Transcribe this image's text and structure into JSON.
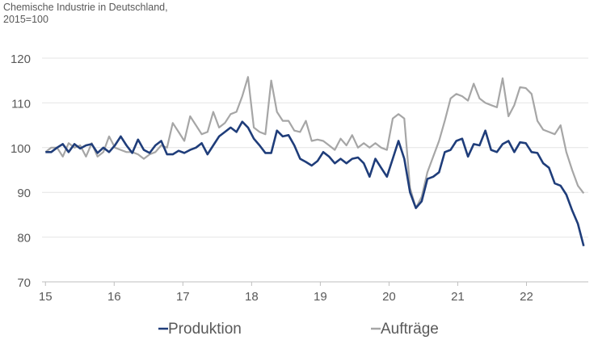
{
  "chart_data": {
    "type": "line",
    "title": "Chemische Industrie in Deutschland,",
    "subtitle": "2015=100",
    "xlabel": "",
    "ylabel": "",
    "x_start": 2015,
    "x_end": 2022.833,
    "xlim": [
      2014.95,
      2022.9
    ],
    "ylim": [
      70,
      120
    ],
    "y_ticks": [
      70,
      80,
      90,
      100,
      110,
      120
    ],
    "x_ticks": [
      {
        "value": 2015,
        "label": "15"
      },
      {
        "value": 2016,
        "label": "16"
      },
      {
        "value": 2017,
        "label": "17"
      },
      {
        "value": 2018,
        "label": "18"
      },
      {
        "value": 2019,
        "label": "19"
      },
      {
        "value": 2020,
        "label": "20"
      },
      {
        "value": 2021,
        "label": "21"
      },
      {
        "value": 2022,
        "label": "22"
      }
    ],
    "grid": true,
    "legend_position": "bottom",
    "series": [
      {
        "name": "Produktion",
        "color": "#1f3d7a",
        "values": [
          99.0,
          99.0,
          100.0,
          100.8,
          99.0,
          100.8,
          99.8,
          100.5,
          100.8,
          98.8,
          100.0,
          99.0,
          100.5,
          102.5,
          100.5,
          98.8,
          101.8,
          99.5,
          98.8,
          100.5,
          101.5,
          98.5,
          98.5,
          99.3,
          98.8,
          99.5,
          100.0,
          101.0,
          98.5,
          100.5,
          102.5,
          103.5,
          104.5,
          103.5,
          105.8,
          104.5,
          102.0,
          100.5,
          98.8,
          98.8,
          103.8,
          102.5,
          102.8,
          100.5,
          97.5,
          96.8,
          96.0,
          97.0,
          99.0,
          98.0,
          96.5,
          97.5,
          96.5,
          97.5,
          97.8,
          96.5,
          93.5,
          97.5,
          95.5,
          93.5,
          97.5,
          101.5,
          97.5,
          90.0,
          86.5,
          88.0,
          93.0,
          93.5,
          94.5,
          99.0,
          99.5,
          101.5,
          102.0,
          98.0,
          100.8,
          100.5,
          103.8,
          99.5,
          99.0,
          100.8,
          101.5,
          99.0,
          101.2,
          101.0,
          99.0,
          98.8,
          96.5,
          95.5,
          92.0,
          91.5,
          89.5,
          86.0,
          83.0,
          78.0
        ]
      },
      {
        "name": "Aufträge",
        "color": "#a6a6a6",
        "values": [
          99.0,
          100.0,
          100.0,
          98.0,
          101.0,
          100.0,
          100.5,
          98.0,
          101.0,
          98.0,
          99.0,
          102.5,
          100.0,
          99.5,
          99.0,
          99.0,
          98.5,
          97.5,
          98.5,
          99.0,
          100.5,
          100.0,
          105.5,
          103.5,
          101.5,
          107.0,
          105.0,
          103.0,
          103.5,
          108.0,
          104.5,
          105.5,
          107.5,
          108.0,
          111.5,
          115.8,
          104.5,
          103.5,
          103.0,
          115.0,
          108.0,
          106.0,
          106.0,
          103.8,
          103.5,
          106.0,
          101.5,
          101.8,
          101.5,
          100.5,
          99.5,
          102.0,
          100.5,
          102.8,
          100.0,
          101.0,
          100.0,
          101.0,
          100.0,
          99.5,
          106.5,
          107.5,
          106.5,
          91.0,
          86.5,
          89.0,
          94.5,
          98.0,
          101.5,
          106.0,
          111.0,
          112.0,
          111.5,
          110.5,
          114.3,
          111.0,
          110.0,
          109.5,
          109.0,
          115.5,
          107.0,
          109.5,
          113.5,
          113.3,
          112.0,
          106.0,
          104.0,
          103.5,
          103.0,
          105.0,
          99.0,
          95.0,
          91.5,
          89.8
        ]
      }
    ]
  }
}
